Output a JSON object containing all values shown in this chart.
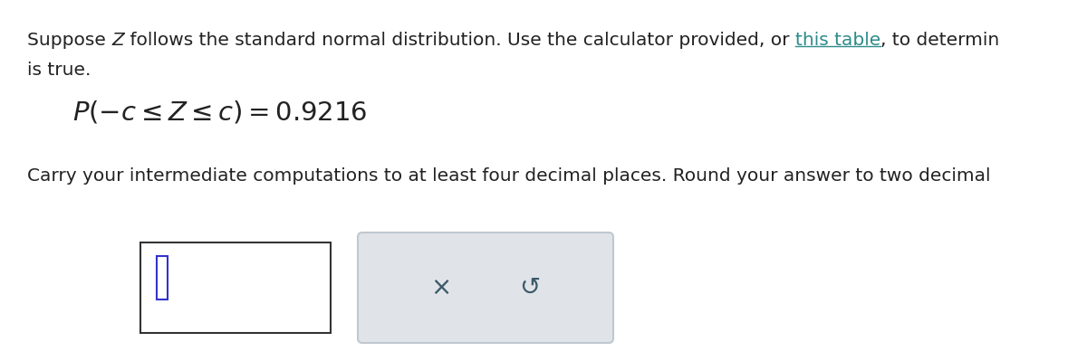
{
  "background_color": "#ffffff",
  "text_color": "#222222",
  "link_color": "#2e8b8b",
  "font_size_main": 14.5,
  "font_size_formula": 21,
  "cursor_color": "#3333cc",
  "button_bg": "#e0e4e8",
  "button_edge": "#c0c8d0",
  "x_symbol": "×",
  "undo_symbol": "↺",
  "line1a": "Suppose ",
  "line1b": "Z",
  "line1c": " follows the standard normal distribution. Use the calculator provided, or ",
  "line1d": "this table",
  "line1e": ", to determin",
  "line2": "is true.",
  "line3": "Carry your intermediate computations to at least four decimal places. Round your answer to two decimal"
}
